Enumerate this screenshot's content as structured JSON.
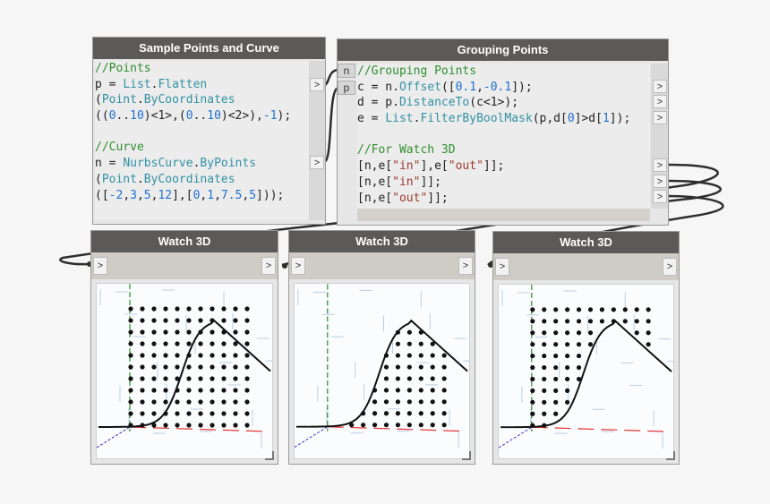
{
  "nodes": {
    "sample": {
      "title": "Sample Points and Curve",
      "lines": [
        [
          {
            "t": "//Points",
            "c": "cm"
          }
        ],
        [
          {
            "t": "p = ",
            "c": ""
          },
          {
            "t": "List",
            "c": "fn"
          },
          {
            "t": ".",
            "c": ""
          },
          {
            "t": "Flatten",
            "c": "fn"
          }
        ],
        [
          {
            "t": "(",
            "c": ""
          },
          {
            "t": "Point",
            "c": "fn"
          },
          {
            "t": ".",
            "c": ""
          },
          {
            "t": "ByCoordinates",
            "c": "fn"
          }
        ],
        [
          {
            "t": "((",
            "c": ""
          },
          {
            "t": "0",
            "c": "num"
          },
          {
            "t": "..",
            "c": ""
          },
          {
            "t": "10",
            "c": "num"
          },
          {
            "t": ")<1>,(",
            "c": ""
          },
          {
            "t": "0",
            "c": "num"
          },
          {
            "t": "..",
            "c": ""
          },
          {
            "t": "10",
            "c": "num"
          },
          {
            "t": ")<2>),",
            "c": ""
          },
          {
            "t": "-1",
            "c": "num"
          },
          {
            "t": ");",
            "c": ""
          }
        ],
        [],
        [
          {
            "t": "//Curve",
            "c": "cm"
          }
        ],
        [
          {
            "t": "n = ",
            "c": ""
          },
          {
            "t": "NurbsCurve",
            "c": "fn"
          },
          {
            "t": ".",
            "c": ""
          },
          {
            "t": "ByPoints",
            "c": "fn"
          }
        ],
        [
          {
            "t": "(",
            "c": ""
          },
          {
            "t": "Point",
            "c": "fn"
          },
          {
            "t": ".",
            "c": ""
          },
          {
            "t": "ByCoordinates",
            "c": "fn"
          }
        ],
        [
          {
            "t": "([",
            "c": ""
          },
          {
            "t": "-2",
            "c": "num"
          },
          {
            "t": ",",
            "c": ""
          },
          {
            "t": "3",
            "c": "num"
          },
          {
            "t": ",",
            "c": ""
          },
          {
            "t": "5",
            "c": "num"
          },
          {
            "t": ",",
            "c": ""
          },
          {
            "t": "12",
            "c": "num"
          },
          {
            "t": "],[",
            "c": ""
          },
          {
            "t": "0",
            "c": "num"
          },
          {
            "t": ",",
            "c": ""
          },
          {
            "t": "1",
            "c": "num"
          },
          {
            "t": ",",
            "c": ""
          },
          {
            "t": "7.5",
            "c": "num"
          },
          {
            "t": ",",
            "c": ""
          },
          {
            "t": "5",
            "c": "num"
          },
          {
            "t": "]));",
            "c": ""
          }
        ]
      ],
      "outputs": [
        ">",
        ">"
      ]
    },
    "grouping": {
      "title": "Grouping Points",
      "inputs": [
        "n",
        "p"
      ],
      "lines": [
        [
          {
            "t": "//Grouping Points",
            "c": "cm"
          }
        ],
        [
          {
            "t": "c = n.",
            "c": ""
          },
          {
            "t": "Offset",
            "c": "fn"
          },
          {
            "t": "([",
            "c": ""
          },
          {
            "t": "0.1",
            "c": "num"
          },
          {
            "t": ",",
            "c": ""
          },
          {
            "t": "-0.1",
            "c": "num"
          },
          {
            "t": "]);",
            "c": ""
          }
        ],
        [
          {
            "t": "d = p.",
            "c": ""
          },
          {
            "t": "DistanceTo",
            "c": "fn"
          },
          {
            "t": "(c<1>);",
            "c": ""
          }
        ],
        [
          {
            "t": "e = ",
            "c": ""
          },
          {
            "t": "List",
            "c": "fn"
          },
          {
            "t": ".",
            "c": ""
          },
          {
            "t": "FilterByBoolMask",
            "c": "fn"
          },
          {
            "t": "(p,d[",
            "c": ""
          },
          {
            "t": "0",
            "c": "num"
          },
          {
            "t": "]>d[",
            "c": ""
          },
          {
            "t": "1",
            "c": "num"
          },
          {
            "t": "]);",
            "c": ""
          }
        ],
        [],
        [
          {
            "t": "//For Watch 3D",
            "c": "cm"
          }
        ],
        [
          {
            "t": "[n,e[",
            "c": ""
          },
          {
            "t": "\"in\"",
            "c": "str"
          },
          {
            "t": "],e[",
            "c": ""
          },
          {
            "t": "\"out\"",
            "c": "str"
          },
          {
            "t": "]];",
            "c": ""
          }
        ],
        [
          {
            "t": "[n,e[",
            "c": ""
          },
          {
            "t": "\"in\"",
            "c": "str"
          },
          {
            "t": "]];",
            "c": ""
          }
        ],
        [
          {
            "t": "[n,e[",
            "c": ""
          },
          {
            "t": "\"out\"",
            "c": "str"
          },
          {
            "t": "]];",
            "c": ""
          }
        ]
      ],
      "outputs": [
        ">",
        ">",
        ">",
        ">",
        ">",
        ">"
      ]
    },
    "watch1": {
      "title": "Watch 3D",
      "in_label": ">",
      "out_label": ">",
      "show": "all"
    },
    "watch2": {
      "title": "Watch 3D",
      "in_label": ">",
      "out_label": ">",
      "show": "in"
    },
    "watch3": {
      "title": "Watch 3D",
      "in_label": ">",
      "out_label": ">",
      "show": "out"
    }
  },
  "colors": {
    "title_bar": "#5c5a58",
    "comment": "#2f8f2f",
    "function": "#3191a4",
    "number": "#1f6fd0",
    "string": "#9b3b2b",
    "x_axis": "#e03030",
    "y_axis": "#2a8a2a",
    "z_axis": "#3030c0"
  }
}
